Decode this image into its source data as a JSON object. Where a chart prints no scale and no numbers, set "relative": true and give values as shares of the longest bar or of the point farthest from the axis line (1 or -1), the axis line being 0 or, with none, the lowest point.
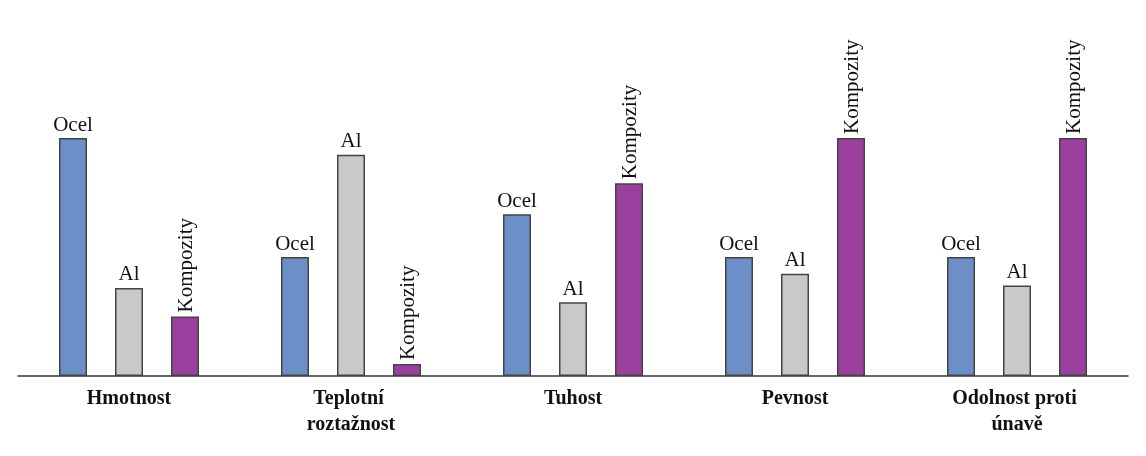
{
  "chart_data": {
    "type": "bar",
    "relative": true,
    "categories": [
      "Hmotnost",
      "Teplotní roztažnost",
      "Tuhost",
      "Pevnost",
      "Odolnost proti únavě"
    ],
    "series": [
      {
        "name": "Ocel",
        "color": "#6b8fc6",
        "values": [
          1.0,
          0.5,
          0.68,
          0.5,
          0.5
        ]
      },
      {
        "name": "Al",
        "color": "#c9c9c9",
        "values": [
          0.37,
          0.93,
          0.31,
          0.43,
          0.38
        ]
      },
      {
        "name": "Kompozity",
        "color": "#9b409f",
        "values": [
          0.25,
          0.05,
          0.81,
          1.0,
          1.0
        ]
      }
    ]
  }
}
